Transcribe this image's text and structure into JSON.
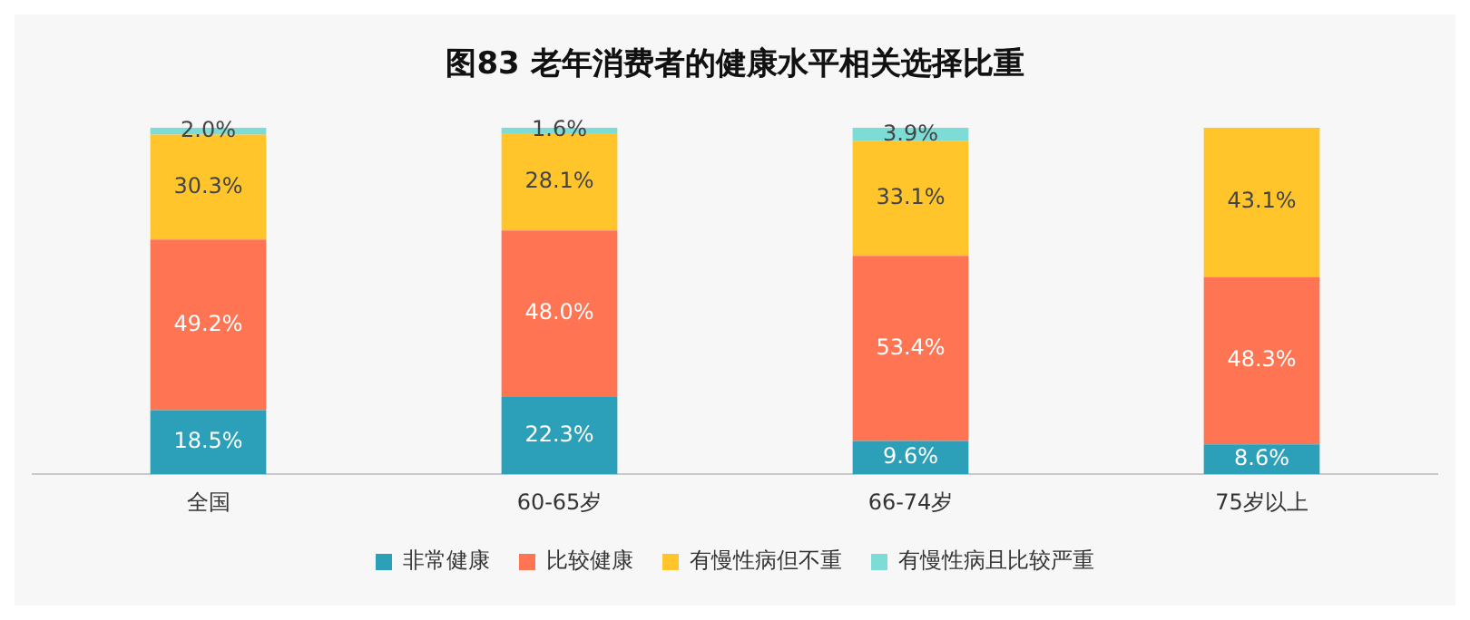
{
  "chart_data": {
    "type": "bar",
    "title": "图83 老年消费者的健康水平相关选择比重",
    "categories": [
      "全国",
      "60-65岁",
      "66-74岁",
      "75岁以上"
    ],
    "stacked": true,
    "ylim": [
      0,
      100
    ],
    "tick_labels": "x",
    "grid": false,
    "legend": "bottom",
    "series": [
      {
        "name": "非常健康",
        "color": "#2ca0b8",
        "values": [
          18.5,
          22.3,
          9.6,
          8.6
        ],
        "value_labels": [
          "18.5%",
          "22.3%",
          "9.6%",
          "8.6%"
        ]
      },
      {
        "name": "比较健康",
        "color": "#ff7452",
        "values": [
          49.2,
          48.0,
          53.4,
          48.3
        ],
        "value_labels": [
          "49.2%",
          "48.0%",
          "53.4%",
          "48.3%"
        ]
      },
      {
        "name": "有慢性病但不重",
        "color": "#ffc52a",
        "values": [
          30.3,
          28.1,
          33.1,
          43.1
        ],
        "value_labels": [
          "30.3%",
          "28.1%",
          "33.1%",
          "43.1%"
        ]
      },
      {
        "name": "有慢性病且比较严重",
        "color": "#7ddcd6",
        "values": [
          2.0,
          1.6,
          3.9,
          null
        ],
        "value_labels": [
          "2.0%",
          "1.6%",
          "3.9%",
          null
        ]
      }
    ]
  }
}
